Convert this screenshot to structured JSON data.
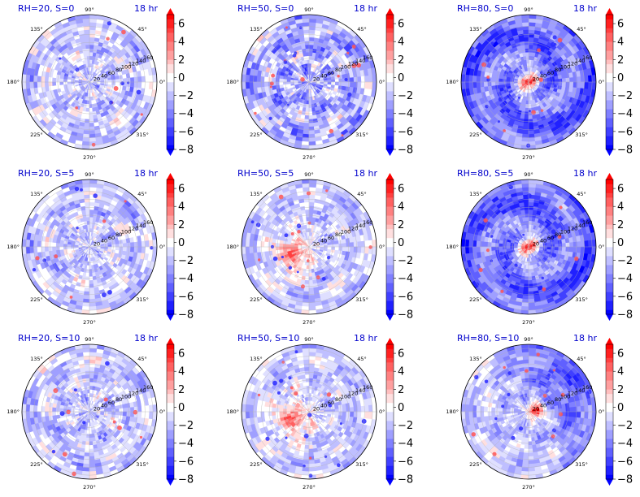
{
  "figure": {
    "time_label": "18 hr",
    "colors": {
      "title": "#0000cc",
      "cmap_low": "#0000ff",
      "cmap_mid": "#ffffff",
      "cmap_high": "#ff0000",
      "grid": "#b0b0b0",
      "frame": "#000000"
    }
  },
  "chart_data": [
    {
      "type": "heatmap",
      "projection": "polar",
      "title": "RH=20, S=0",
      "time": "18 hr",
      "rh": 20,
      "s": 0,
      "pattern": "weak-scattered",
      "dominant": "blue-weak",
      "angular_ticks": [
        "0°",
        "45°",
        "90°",
        "135°",
        "180°",
        "225°",
        "270°",
        "315°"
      ],
      "radial_ticks": [
        20,
        40,
        60,
        80,
        100,
        120,
        140,
        160
      ],
      "colorbar": {
        "ticks": [
          6,
          4,
          2,
          0,
          -2,
          -4,
          -6,
          -8
        ],
        "range": [
          -8,
          7
        ],
        "extend": "both"
      }
    },
    {
      "type": "heatmap",
      "projection": "polar",
      "title": "RH=50, S=0",
      "time": "18 hr",
      "rh": 50,
      "s": 0,
      "pattern": "scattered-cells",
      "dominant": "blue-moderate",
      "angular_ticks": [
        "0°",
        "45°",
        "90°",
        "135°",
        "180°",
        "225°",
        "270°",
        "315°"
      ],
      "radial_ticks": [
        20,
        40,
        60,
        80,
        100,
        120,
        140,
        160
      ],
      "colorbar": {
        "ticks": [
          6,
          4,
          2,
          0,
          -2,
          -4,
          -6,
          -8
        ],
        "range": [
          -8,
          7
        ],
        "extend": "both"
      }
    },
    {
      "type": "heatmap",
      "projection": "polar",
      "title": "RH=80, S=0",
      "time": "18 hr",
      "rh": 80,
      "s": 0,
      "pattern": "warm-core-spiral",
      "dominant": "blue-strong",
      "angular_ticks": [
        "0°",
        "45°",
        "90°",
        "135°",
        "180°",
        "225°",
        "270°",
        "315°"
      ],
      "radial_ticks": [
        20,
        40,
        60,
        80,
        100,
        120,
        140,
        160
      ],
      "colorbar": {
        "ticks": [
          6,
          4,
          2,
          0,
          -2,
          -4,
          -6,
          -8
        ],
        "range": [
          -8,
          7
        ],
        "extend": "both"
      }
    },
    {
      "type": "heatmap",
      "projection": "polar",
      "title": "RH=20, S=5",
      "time": "18 hr",
      "rh": 20,
      "s": 5,
      "pattern": "weak-scattered",
      "dominant": "blue-weak",
      "angular_ticks": [
        "0°",
        "45°",
        "90°",
        "135°",
        "180°",
        "225°",
        "270°",
        "315°"
      ],
      "radial_ticks": [
        20,
        40,
        60,
        80,
        100,
        120,
        140,
        160
      ],
      "colorbar": {
        "ticks": [
          6,
          4,
          2,
          0,
          -2,
          -4,
          -6,
          -8
        ],
        "range": [
          -8,
          7
        ],
        "extend": "both"
      }
    },
    {
      "type": "heatmap",
      "projection": "polar",
      "title": "RH=50, S=5",
      "time": "18 hr",
      "rh": 50,
      "s": 5,
      "pattern": "warm-blob-left",
      "dominant": "blue-moderate",
      "angular_ticks": [
        "0°",
        "45°",
        "90°",
        "135°",
        "180°",
        "225°",
        "270°",
        "315°"
      ],
      "radial_ticks": [
        20,
        40,
        60,
        80,
        100,
        120,
        140,
        160
      ],
      "colorbar": {
        "ticks": [
          6,
          4,
          2,
          0,
          -2,
          -4,
          -6,
          -8
        ],
        "range": [
          -8,
          7
        ],
        "extend": "both"
      }
    },
    {
      "type": "heatmap",
      "projection": "polar",
      "title": "RH=80, S=5",
      "time": "18 hr",
      "rh": 80,
      "s": 5,
      "pattern": "warm-core-spiral",
      "dominant": "blue-strong",
      "angular_ticks": [
        "0°",
        "45°",
        "90°",
        "135°",
        "180°",
        "225°",
        "270°",
        "315°"
      ],
      "radial_ticks": [
        20,
        40,
        60,
        80,
        100,
        120,
        140,
        160
      ],
      "colorbar": {
        "ticks": [
          6,
          4,
          2,
          0,
          -2,
          -4,
          -6,
          -8
        ],
        "range": [
          -8,
          7
        ],
        "extend": "both"
      }
    },
    {
      "type": "heatmap",
      "projection": "polar",
      "title": "RH=20, S=10",
      "time": "18 hr",
      "rh": 20,
      "s": 10,
      "pattern": "weak-scattered",
      "dominant": "blue-weak",
      "angular_ticks": [
        "0°",
        "45°",
        "90°",
        "135°",
        "180°",
        "225°",
        "270°",
        "315°"
      ],
      "radial_ticks": [
        20,
        40,
        60,
        80,
        100,
        120,
        140,
        160
      ],
      "colorbar": {
        "ticks": [
          6,
          4,
          2,
          0,
          -2,
          -4,
          -6,
          -8
        ],
        "range": [
          -8,
          7
        ],
        "extend": "both"
      }
    },
    {
      "type": "heatmap",
      "projection": "polar",
      "title": "RH=50, S=10",
      "time": "18 hr",
      "rh": 50,
      "s": 10,
      "pattern": "warm-blob-left",
      "dominant": "blue-moderate",
      "angular_ticks": [
        "0°",
        "45°",
        "90°",
        "135°",
        "180°",
        "225°",
        "270°",
        "315°"
      ],
      "radial_ticks": [
        20,
        40,
        60,
        80,
        100,
        120,
        140,
        160
      ],
      "colorbar": {
        "ticks": [
          6,
          4,
          2,
          0,
          -2,
          -4,
          -6,
          -8
        ],
        "range": [
          -8,
          7
        ],
        "extend": "both"
      }
    },
    {
      "type": "heatmap",
      "projection": "polar",
      "title": "RH=80, S=10",
      "time": "18 hr",
      "rh": 80,
      "s": 10,
      "pattern": "asymmetric-east-band",
      "dominant": "blue-strong",
      "angular_ticks": [
        "0°",
        "45°",
        "90°",
        "135°",
        "180°",
        "225°",
        "270°",
        "315°"
      ],
      "radial_ticks": [
        20,
        40,
        60,
        80,
        100,
        120,
        140,
        160
      ],
      "colorbar": {
        "ticks": [
          6,
          4,
          2,
          0,
          -2,
          -4,
          -6,
          -8
        ],
        "range": [
          -8,
          7
        ],
        "extend": "both"
      }
    }
  ]
}
